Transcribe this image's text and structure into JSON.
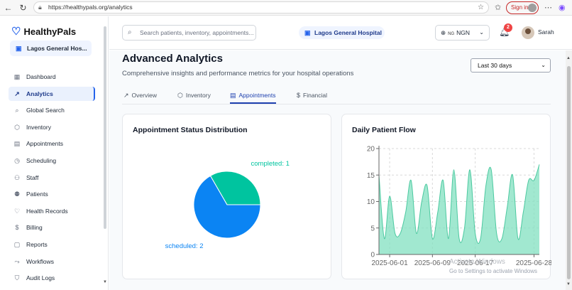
{
  "browser": {
    "url": "https://healthypals.org/analytics",
    "signin_label": "Sign in"
  },
  "sidebar": {
    "brand": "HealthyPals",
    "hospital": "Lagos General Hos...",
    "items": [
      {
        "label": "Dashboard",
        "icon": "dashboard-icon",
        "glyph": "▦"
      },
      {
        "label": "Analytics",
        "icon": "trend-icon",
        "glyph": "↗"
      },
      {
        "label": "Global Search",
        "icon": "search-icon",
        "glyph": "⌕"
      },
      {
        "label": "Inventory",
        "icon": "box-icon",
        "glyph": "⬡"
      },
      {
        "label": "Appointments",
        "icon": "calendar-icon",
        "glyph": "▤"
      },
      {
        "label": "Scheduling",
        "icon": "clock-icon",
        "glyph": "◷"
      },
      {
        "label": "Staff",
        "icon": "staff-icon",
        "glyph": "⚇"
      },
      {
        "label": "Patients",
        "icon": "patients-icon",
        "glyph": "⚉"
      },
      {
        "label": "Health Records",
        "icon": "heart-icon",
        "glyph": "♡"
      },
      {
        "label": "Billing",
        "icon": "dollar-icon",
        "glyph": "$"
      },
      {
        "label": "Reports",
        "icon": "report-icon",
        "glyph": "▢"
      },
      {
        "label": "Workflows",
        "icon": "workflow-icon",
        "glyph": "⤳"
      },
      {
        "label": "Audit Logs",
        "icon": "shield-icon",
        "glyph": "⛉"
      }
    ],
    "active_index": 1
  },
  "header": {
    "search_placeholder": "Search patients, inventory, appointments...",
    "hospital_badge": "Lagos General Hospital",
    "currency_prefix": "NG",
    "currency": "NGN",
    "notifications": "2",
    "user": "Sarah"
  },
  "page": {
    "title": "Advanced Analytics",
    "subtitle": "Comprehensive insights and performance metrics for your hospital operations",
    "range": "Last 30 days",
    "tabs": [
      {
        "label": "Overview",
        "icon": "trend-icon",
        "glyph": "↗"
      },
      {
        "label": "Inventory",
        "icon": "box-icon",
        "glyph": "⬡"
      },
      {
        "label": "Appointments",
        "icon": "calendar-icon",
        "glyph": "▤"
      },
      {
        "label": "Financial",
        "icon": "dollar-icon",
        "glyph": "$"
      }
    ],
    "active_tab": 2
  },
  "chart_data": [
    {
      "type": "pie",
      "title": "Appointment Status Distribution",
      "slices": [
        {
          "label": "scheduled",
          "value": 2,
          "color": "#0b84f3",
          "display": "scheduled: 2"
        },
        {
          "label": "completed",
          "value": 1,
          "color": "#00c49f",
          "display": "completed: 1"
        }
      ]
    },
    {
      "type": "area",
      "title": "Daily Patient Flow",
      "x": [
        "2025-05-30",
        "2025-05-31",
        "2025-06-01",
        "2025-06-02",
        "2025-06-03",
        "2025-06-04",
        "2025-06-05",
        "2025-06-06",
        "2025-06-07",
        "2025-06-08",
        "2025-06-09",
        "2025-06-10",
        "2025-06-11",
        "2025-06-12",
        "2025-06-13",
        "2025-06-14",
        "2025-06-15",
        "2025-06-16",
        "2025-06-17",
        "2025-06-18",
        "2025-06-19",
        "2025-06-20",
        "2025-06-21",
        "2025-06-22",
        "2025-06-23",
        "2025-06-24",
        "2025-06-25",
        "2025-06-26",
        "2025-06-27",
        "2025-06-28",
        "2025-06-29"
      ],
      "values": [
        15,
        3,
        11,
        4,
        4,
        8,
        14,
        4,
        10,
        13,
        3,
        8,
        14,
        3,
        16,
        3,
        5,
        16,
        4,
        3,
        13,
        16,
        4,
        3,
        9,
        15,
        3,
        8,
        14,
        14,
        17
      ],
      "xticks": [
        "2025-06-01",
        "2025-06-09",
        "2025-06-17",
        "2025-06-28"
      ],
      "ylim": [
        0,
        20
      ],
      "yticks": [
        0,
        5,
        10,
        15,
        20
      ],
      "color": "#82e0c0",
      "stroke": "#4cc9a0",
      "grid": true
    }
  ],
  "watermark": {
    "line1": "Activate Windows",
    "line2": "Go to Settings to activate Windows"
  }
}
